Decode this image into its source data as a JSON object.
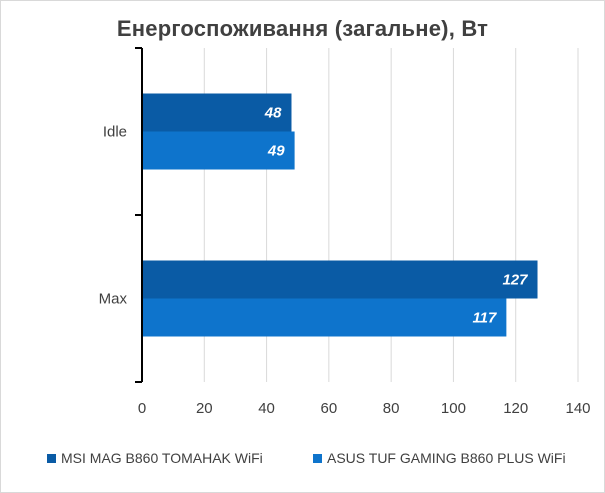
{
  "chart_data": {
    "type": "bar",
    "orientation": "horizontal",
    "title": "Енергоспоживання (загальне), Вт",
    "categories": [
      "Idle",
      "Max"
    ],
    "series": [
      {
        "name": "MSI MAG B860 TOMAHAK WiFi",
        "values": [
          48,
          127
        ],
        "color": "#0a5ba5"
      },
      {
        "name": "ASUS TUF GAMING B860 PLUS WiFi",
        "values": [
          49,
          117
        ],
        "color": "#0e74cc"
      }
    ],
    "data_labels": [
      [
        "48",
        "127"
      ],
      [
        "49",
        "117"
      ]
    ],
    "xlim": [
      0,
      140
    ],
    "x_ticks": [
      0,
      20,
      40,
      60,
      80,
      100,
      120,
      140
    ],
    "x_tick_labels": [
      "0",
      "20",
      "40",
      "60",
      "80",
      "100",
      "120",
      "140"
    ],
    "grid": true,
    "legend_position": "bottom"
  }
}
